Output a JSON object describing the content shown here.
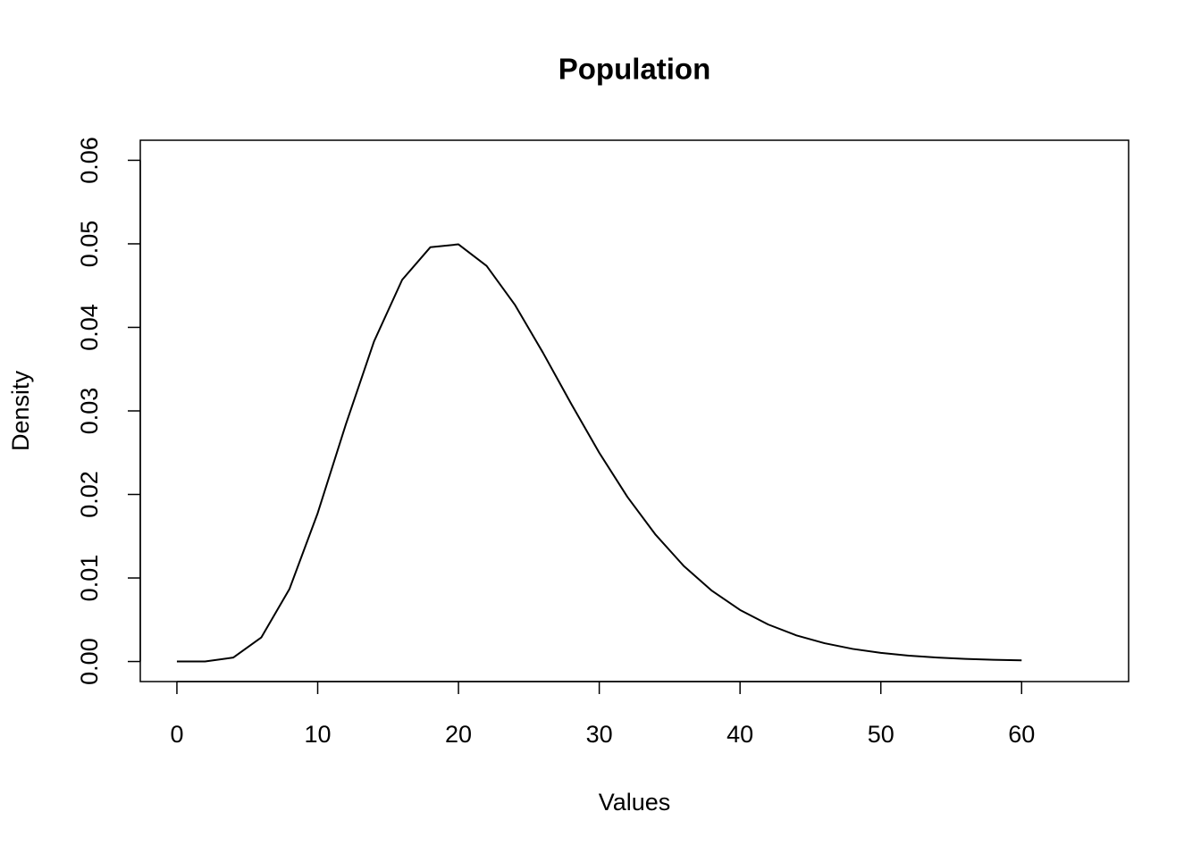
{
  "chart_data": {
    "type": "line",
    "title": "Population",
    "x_label": "Values",
    "y_label": "Density",
    "x": [
      0,
      2,
      4,
      6,
      8,
      10,
      12,
      14,
      16,
      18,
      20,
      22,
      24,
      26,
      28,
      30,
      32,
      34,
      36,
      38,
      40,
      42,
      44,
      46,
      48,
      50,
      52,
      54,
      56,
      58,
      60
    ],
    "series": [
      {
        "color": "#000000",
        "values": [
          0,
          1e-05,
          0.00047,
          0.00289,
          0.0087,
          0.01776,
          0.02839,
          0.03831,
          0.04569,
          0.04959,
          0.04994,
          0.04736,
          0.04272,
          0.03697,
          0.03087,
          0.02499,
          0.0197,
          0.01518,
          0.01144,
          0.00847,
          0.00617,
          0.00443,
          0.00313,
          0.00219,
          0.00151,
          0.00103,
          0.0007,
          0.00047,
          0.00031,
          0.00021,
          0.00014
        ]
      }
    ],
    "xlim": [
      -2.6,
      67.6
    ],
    "ylim": [
      -0.0024,
      0.0624
    ],
    "xticks": [
      0,
      10,
      20,
      30,
      40,
      50,
      60
    ],
    "yticks": [
      {
        "value": 0,
        "label": "0.00"
      },
      0.01,
      0.02,
      0.03,
      0.04,
      0.05,
      0.06
    ]
  }
}
